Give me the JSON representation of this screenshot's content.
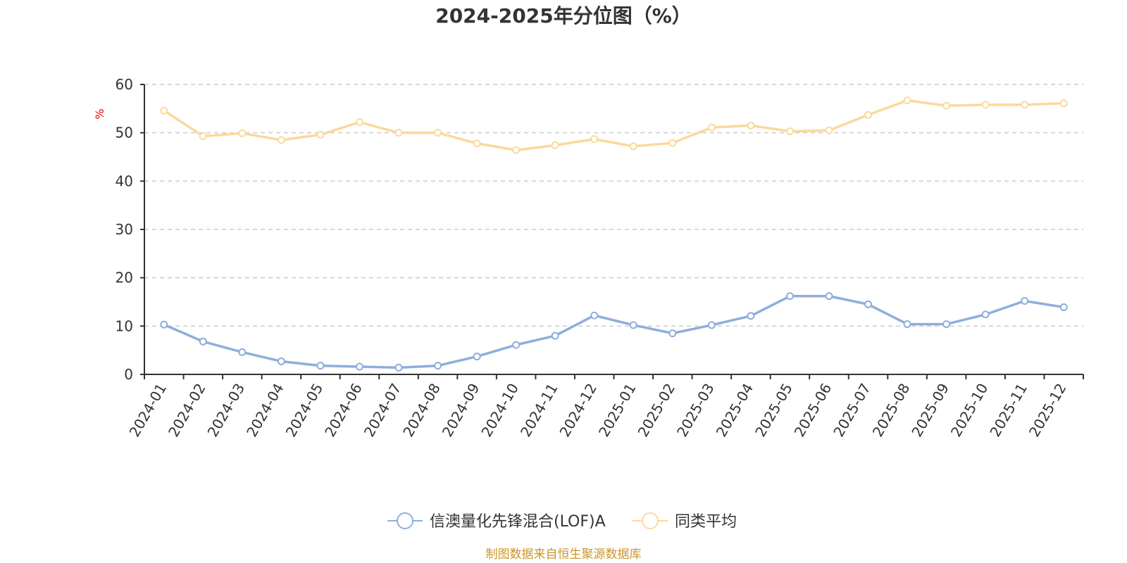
{
  "chart_data": {
    "type": "line",
    "title": "2024-2025年分位图（%）",
    "ylabel": "%",
    "xlabel": "",
    "ylim": [
      0,
      60
    ],
    "yticks": [
      0,
      10,
      20,
      30,
      40,
      50,
      60
    ],
    "grid": true,
    "legend_position": "bottom",
    "categories": [
      "2024-01",
      "2024-02",
      "2024-03",
      "2024-04",
      "2024-05",
      "2024-06",
      "2024-07",
      "2024-08",
      "2024-09",
      "2024-10",
      "2024-11",
      "2024-12",
      "2025-01",
      "2025-02",
      "2025-03",
      "2025-04",
      "2025-05",
      "2025-06",
      "2025-07",
      "2025-08",
      "2025-09",
      "2025-10",
      "2025-11",
      "2025-12"
    ],
    "series": [
      {
        "name": "信澳量化先锋混合(LOF)A",
        "color": "#8eaedb",
        "values": [
          10.3,
          6.8,
          4.6,
          2.7,
          1.8,
          1.6,
          1.4,
          1.8,
          3.7,
          6.1,
          8.0,
          12.2,
          10.2,
          8.5,
          10.2,
          12.1,
          16.2,
          16.2,
          14.5,
          10.4,
          10.4,
          12.4,
          15.2,
          13.9
        ]
      },
      {
        "name": "同类平均",
        "color": "#fbd99b",
        "values": [
          54.6,
          49.3,
          49.9,
          48.5,
          49.6,
          52.2,
          50.0,
          50.0,
          47.8,
          46.4,
          47.4,
          48.7,
          47.2,
          47.9,
          51.1,
          51.5,
          50.3,
          50.5,
          53.7,
          56.7,
          55.6,
          55.8,
          55.8,
          56.1
        ]
      }
    ],
    "source_note": "制图数据来自恒生聚源数据库",
    "colors": {
      "axis": "#333333",
      "grid": "#cccccc",
      "unit_label": "#ff0000",
      "source": "#c8962e"
    }
  }
}
